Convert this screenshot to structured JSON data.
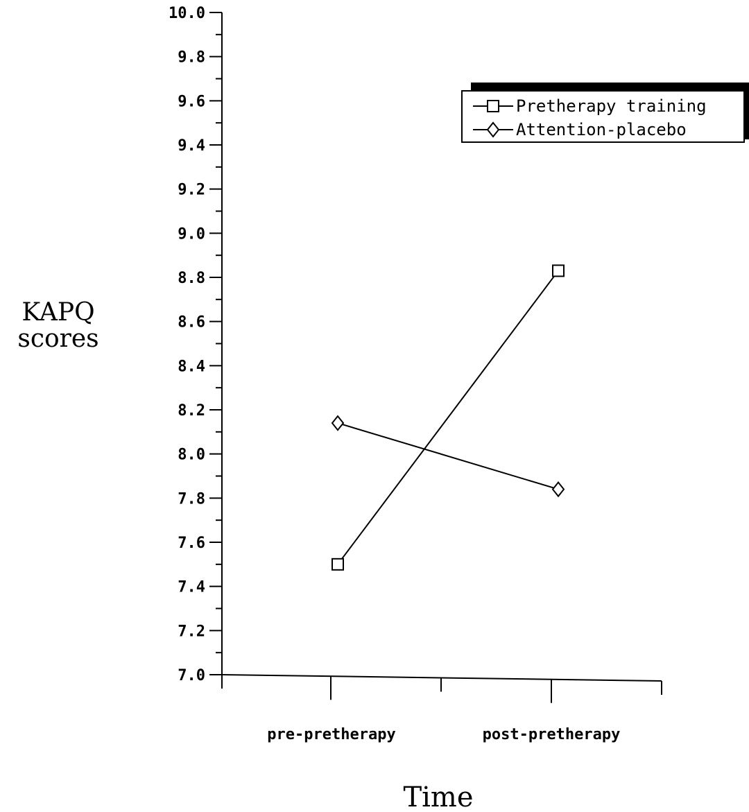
{
  "chart_data": {
    "type": "line",
    "xlabel": "Time",
    "ylabel": [
      "KAPQ",
      "scores"
    ],
    "categories": [
      "pre-pretherapy",
      "post-pretherapy"
    ],
    "ylim": [
      7.0,
      10.0
    ],
    "yticks": [
      "7.0",
      "7.2",
      "7.4",
      "7.6",
      "7.8",
      "8.0",
      "8.2",
      "8.4",
      "8.6",
      "8.8",
      "9.0",
      "9.2",
      "9.4",
      "9.6",
      "9.8",
      "10.0"
    ],
    "grid": false,
    "legend_position": "top-right",
    "series": [
      {
        "name": "Pretherapy training",
        "marker": "square",
        "values": [
          7.5,
          8.83
        ]
      },
      {
        "name": "Attention-placebo",
        "marker": "diamond",
        "values": [
          8.14,
          7.84
        ]
      }
    ],
    "line_color": "#000000",
    "background": "#ffffff"
  }
}
